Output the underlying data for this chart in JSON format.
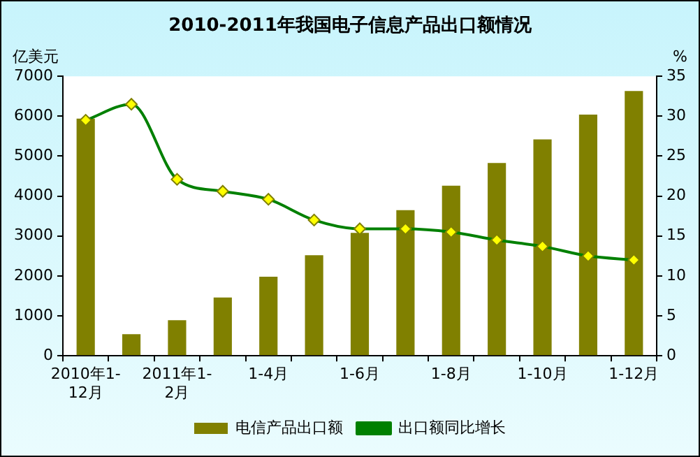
{
  "chart_data": {
    "type": "bar",
    "title": "2010-2011年我国电子信息产品出口额情况",
    "ylabel": "亿美元",
    "y2label": "%",
    "categories": [
      "2010年1-12月",
      null,
      "2011年1-2月",
      null,
      "1-4月",
      null,
      "1-6月",
      null,
      "1-8月",
      null,
      "1-10月",
      null,
      "1-12月"
    ],
    "series": [
      {
        "name": "电信产品出口额",
        "color": "#808000",
        "values": [
          5940,
          540,
          890,
          1460,
          1980,
          2520,
          3080,
          3650,
          4260,
          4830,
          5420,
          6040,
          6630
        ]
      },
      {
        "name": "出口额同比增长",
        "type": "line",
        "axis": "y2",
        "color": "#008000",
        "marker": "diamond",
        "values": [
          29.5,
          31.5,
          22.1,
          20.6,
          19.6,
          17.0,
          15.9,
          15.9,
          15.5,
          14.5,
          13.7,
          12.5,
          12.0
        ]
      }
    ],
    "ylim": [
      0,
      7000
    ],
    "yticks": [
      0,
      1000,
      2000,
      3000,
      4000,
      5000,
      6000,
      7000
    ],
    "y2lim": [
      0,
      35
    ],
    "y2ticks": [
      0,
      5,
      10,
      15,
      20,
      25,
      30,
      35
    ],
    "grid": false,
    "legend": "bottom"
  }
}
